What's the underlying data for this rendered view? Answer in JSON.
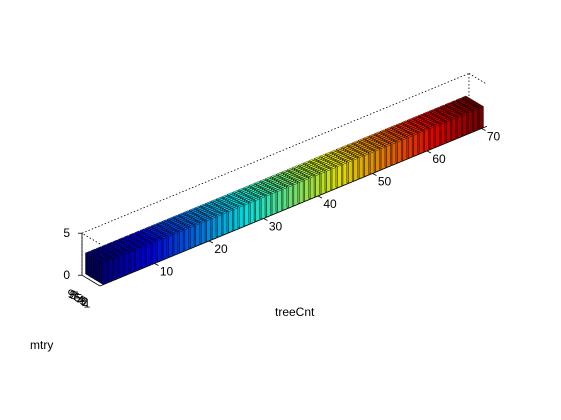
{
  "chart_data": {
    "type": "bar3",
    "title": "",
    "xlabel": "treeCnt",
    "ylabel": "mtry",
    "zlabel": "",
    "x_ticks": [
      10,
      20,
      30,
      40,
      50,
      60,
      70
    ],
    "y_ticks": [
      1,
      2,
      3,
      4,
      5,
      6,
      7,
      8,
      9
    ],
    "z_ticks": [
      0,
      5
    ],
    "xlim": [
      0,
      71
    ],
    "ylim": [
      0.5,
      9.5
    ],
    "zlim": [
      0,
      5
    ],
    "x_range": [
      1,
      70
    ],
    "y_range": [
      1,
      9
    ],
    "bar_height": 2.5,
    "grid": false,
    "box": true,
    "colormap": "jet",
    "color_by": "treeCnt",
    "colormap_colors": [
      "#00008f",
      "#0000ff",
      "#00ffff",
      "#ffff00",
      "#ff0000",
      "#800000"
    ]
  }
}
